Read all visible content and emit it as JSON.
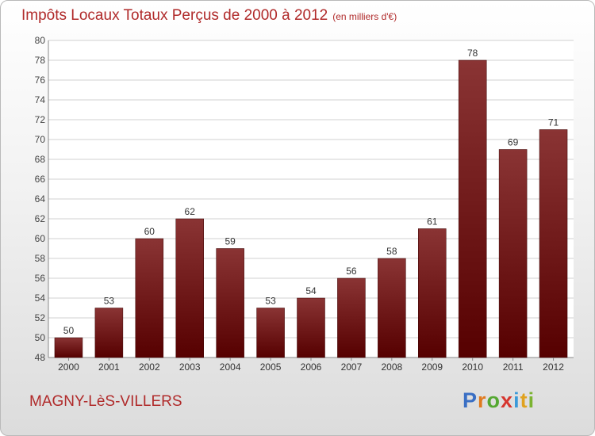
{
  "header": {
    "title": "Impôts Locaux Totaux Perçus de 2000 à 2012",
    "unit": "(en milliers d'€)"
  },
  "footer": {
    "location": "MAGNY-LèS-VILLERS",
    "logo": [
      "P",
      "r",
      "o",
      "x",
      "i",
      "t",
      "i"
    ],
    "logo_colors": [
      "#3a6fc4",
      "#e07a1f",
      "#55a832",
      "#d6352e",
      "#3a9ad9",
      "#e0a21f",
      "#7bb331"
    ]
  },
  "colors": {
    "bar_top": "#8a3434",
    "bar_bottom": "#560000",
    "title": "#b02a2a"
  },
  "chart_data": {
    "type": "bar",
    "title": "Impôts Locaux Totaux Perçus de 2000 à 2012",
    "categories": [
      "2000",
      "2001",
      "2002",
      "2003",
      "2004",
      "2005",
      "2006",
      "2007",
      "2008",
      "2009",
      "2010",
      "2011",
      "2012"
    ],
    "values": [
      50,
      53,
      60,
      62,
      59,
      53,
      54,
      56,
      58,
      61,
      78,
      69,
      71
    ],
    "ylim": [
      48,
      80
    ],
    "yticks": [
      48,
      50,
      52,
      54,
      56,
      58,
      60,
      62,
      64,
      66,
      68,
      70,
      72,
      74,
      76,
      78,
      80
    ],
    "grid": true
  }
}
